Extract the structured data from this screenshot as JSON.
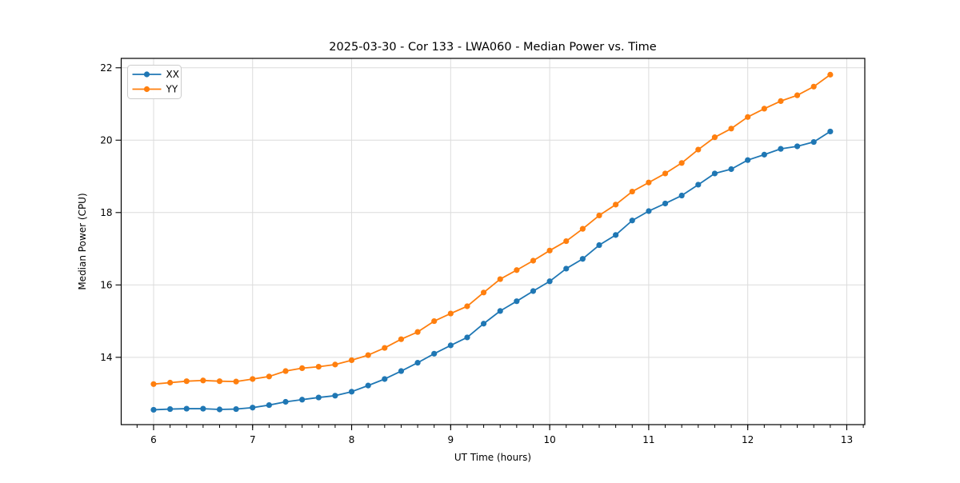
{
  "chart_data": {
    "type": "line",
    "title": "2025-03-30 - Cor 133 - LWA060 - Median Power vs. Time",
    "xlabel": "UT Time (hours)",
    "ylabel": "Median Power (CPU)",
    "xlim": [
      5.673,
      13.182
    ],
    "ylim": [
      12.14,
      22.26
    ],
    "xticks": [
      6,
      7,
      8,
      9,
      10,
      11,
      12,
      13
    ],
    "yticks": [
      14,
      16,
      18,
      20,
      22
    ],
    "x_minor_step_hours": 0.166667,
    "grid": "major-only",
    "legend_position": "upper-left",
    "x": [
      6.0,
      6.1667,
      6.3333,
      6.5,
      6.6667,
      6.8333,
      7.0,
      7.1667,
      7.3333,
      7.5,
      7.6667,
      7.8333,
      8.0,
      8.1667,
      8.3333,
      8.5,
      8.6667,
      8.8333,
      9.0,
      9.1667,
      9.3333,
      9.5,
      9.6667,
      9.8333,
      10.0,
      10.1667,
      10.3333,
      10.5,
      10.6667,
      10.8333,
      11.0,
      11.1667,
      11.3333,
      11.5,
      11.6667,
      11.8333,
      12.0,
      12.1667,
      12.3333,
      12.5,
      12.6667,
      12.8333
    ],
    "series": [
      {
        "name": "XX",
        "color": "#1f77b4",
        "values": [
          12.55,
          12.57,
          12.58,
          12.58,
          12.56,
          12.57,
          12.61,
          12.68,
          12.77,
          12.83,
          12.89,
          12.94,
          13.05,
          13.22,
          13.4,
          13.62,
          13.85,
          14.1,
          14.33,
          14.55,
          14.93,
          15.28,
          15.55,
          15.83,
          16.1,
          16.45,
          16.72,
          17.1,
          17.38,
          17.78,
          18.04,
          18.25,
          18.47,
          18.77,
          19.08,
          19.2,
          19.45,
          19.6,
          19.76,
          19.83,
          19.95,
          20.24
        ]
      },
      {
        "name": "YY",
        "color": "#ff7f0e",
        "values": [
          13.26,
          13.3,
          13.34,
          13.36,
          13.34,
          13.33,
          13.4,
          13.47,
          13.62,
          13.7,
          13.74,
          13.8,
          13.92,
          14.06,
          14.26,
          14.5,
          14.7,
          15.0,
          15.21,
          15.41,
          15.79,
          16.16,
          16.41,
          16.67,
          16.95,
          17.21,
          17.55,
          17.92,
          18.22,
          18.58,
          18.83,
          19.08,
          19.37,
          19.74,
          20.08,
          20.32,
          20.64,
          20.87,
          21.08,
          21.24,
          21.48,
          21.81
        ]
      }
    ]
  },
  "colors": {
    "background": "#ffffff",
    "grid": "#dcdcdc",
    "spine": "#000000",
    "text": "#000000",
    "legend_border": "#cccccc",
    "legend_background": "#ffffff"
  }
}
